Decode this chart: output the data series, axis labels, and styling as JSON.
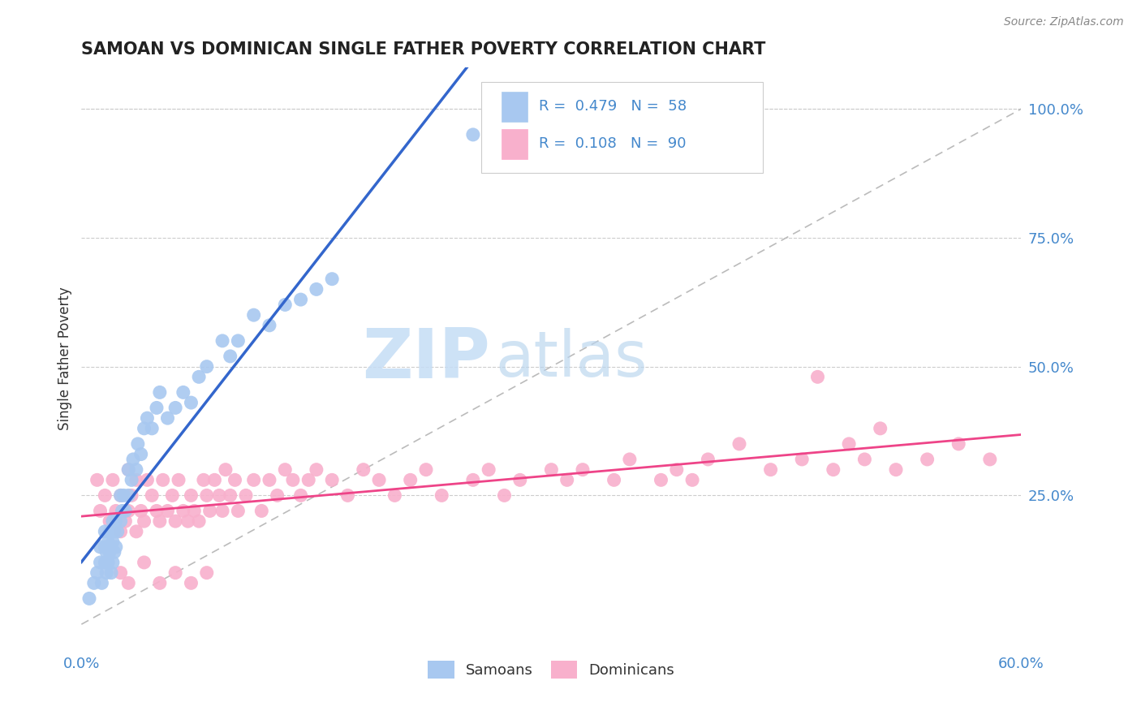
{
  "title": "SAMOAN VS DOMINICAN SINGLE FATHER POVERTY CORRELATION CHART",
  "source": "Source: ZipAtlas.com",
  "ylabel": "Single Father Poverty",
  "right_yticks": [
    "100.0%",
    "75.0%",
    "50.0%",
    "25.0%"
  ],
  "right_ytick_vals": [
    1.0,
    0.75,
    0.5,
    0.25
  ],
  "xlim": [
    0.0,
    0.6
  ],
  "ylim": [
    -0.05,
    1.08
  ],
  "samoan_color": "#a8c8f0",
  "dominican_color": "#f8b0cc",
  "samoan_line_color": "#3366cc",
  "dominican_line_color": "#ee4488",
  "diagonal_color": "#bbbbbb",
  "watermark_zip": "ZIP",
  "watermark_atlas": "atlas",
  "samoan_x": [
    0.005,
    0.008,
    0.01,
    0.012,
    0.012,
    0.013,
    0.015,
    0.015,
    0.015,
    0.016,
    0.016,
    0.017,
    0.017,
    0.018,
    0.018,
    0.019,
    0.019,
    0.02,
    0.02,
    0.02,
    0.021,
    0.021,
    0.022,
    0.022,
    0.023,
    0.025,
    0.025,
    0.026,
    0.027,
    0.028,
    0.03,
    0.03,
    0.032,
    0.033,
    0.035,
    0.036,
    0.038,
    0.04,
    0.042,
    0.045,
    0.048,
    0.05,
    0.055,
    0.06,
    0.065,
    0.07,
    0.075,
    0.08,
    0.09,
    0.095,
    0.1,
    0.11,
    0.12,
    0.13,
    0.14,
    0.15,
    0.16,
    0.25
  ],
  "samoan_y": [
    0.05,
    0.08,
    0.1,
    0.12,
    0.15,
    0.08,
    0.12,
    0.15,
    0.18,
    0.1,
    0.14,
    0.12,
    0.16,
    0.14,
    0.18,
    0.1,
    0.15,
    0.12,
    0.16,
    0.2,
    0.14,
    0.18,
    0.15,
    0.2,
    0.18,
    0.2,
    0.25,
    0.22,
    0.25,
    0.22,
    0.25,
    0.3,
    0.28,
    0.32,
    0.3,
    0.35,
    0.33,
    0.38,
    0.4,
    0.38,
    0.42,
    0.45,
    0.4,
    0.42,
    0.45,
    0.43,
    0.48,
    0.5,
    0.55,
    0.52,
    0.55,
    0.6,
    0.58,
    0.62,
    0.63,
    0.65,
    0.67,
    0.95
  ],
  "dominican_x": [
    0.01,
    0.012,
    0.015,
    0.018,
    0.02,
    0.022,
    0.025,
    0.025,
    0.028,
    0.03,
    0.03,
    0.032,
    0.035,
    0.035,
    0.038,
    0.04,
    0.042,
    0.045,
    0.048,
    0.05,
    0.052,
    0.055,
    0.058,
    0.06,
    0.062,
    0.065,
    0.068,
    0.07,
    0.072,
    0.075,
    0.078,
    0.08,
    0.082,
    0.085,
    0.088,
    0.09,
    0.092,
    0.095,
    0.098,
    0.1,
    0.105,
    0.11,
    0.115,
    0.12,
    0.125,
    0.13,
    0.135,
    0.14,
    0.145,
    0.15,
    0.16,
    0.17,
    0.18,
    0.19,
    0.2,
    0.21,
    0.22,
    0.23,
    0.25,
    0.26,
    0.27,
    0.28,
    0.3,
    0.31,
    0.32,
    0.34,
    0.35,
    0.37,
    0.38,
    0.39,
    0.4,
    0.42,
    0.44,
    0.46,
    0.48,
    0.5,
    0.52,
    0.54,
    0.56,
    0.58,
    0.025,
    0.03,
    0.04,
    0.05,
    0.06,
    0.07,
    0.08,
    0.47,
    0.49,
    0.51
  ],
  "dominican_y": [
    0.28,
    0.22,
    0.25,
    0.2,
    0.28,
    0.22,
    0.18,
    0.25,
    0.2,
    0.22,
    0.3,
    0.25,
    0.18,
    0.28,
    0.22,
    0.2,
    0.28,
    0.25,
    0.22,
    0.2,
    0.28,
    0.22,
    0.25,
    0.2,
    0.28,
    0.22,
    0.2,
    0.25,
    0.22,
    0.2,
    0.28,
    0.25,
    0.22,
    0.28,
    0.25,
    0.22,
    0.3,
    0.25,
    0.28,
    0.22,
    0.25,
    0.28,
    0.22,
    0.28,
    0.25,
    0.3,
    0.28,
    0.25,
    0.28,
    0.3,
    0.28,
    0.25,
    0.3,
    0.28,
    0.25,
    0.28,
    0.3,
    0.25,
    0.28,
    0.3,
    0.25,
    0.28,
    0.3,
    0.28,
    0.3,
    0.28,
    0.32,
    0.28,
    0.3,
    0.28,
    0.32,
    0.35,
    0.3,
    0.32,
    0.3,
    0.32,
    0.3,
    0.32,
    0.35,
    0.32,
    0.1,
    0.08,
    0.12,
    0.08,
    0.1,
    0.08,
    0.1,
    0.48,
    0.35,
    0.38
  ]
}
